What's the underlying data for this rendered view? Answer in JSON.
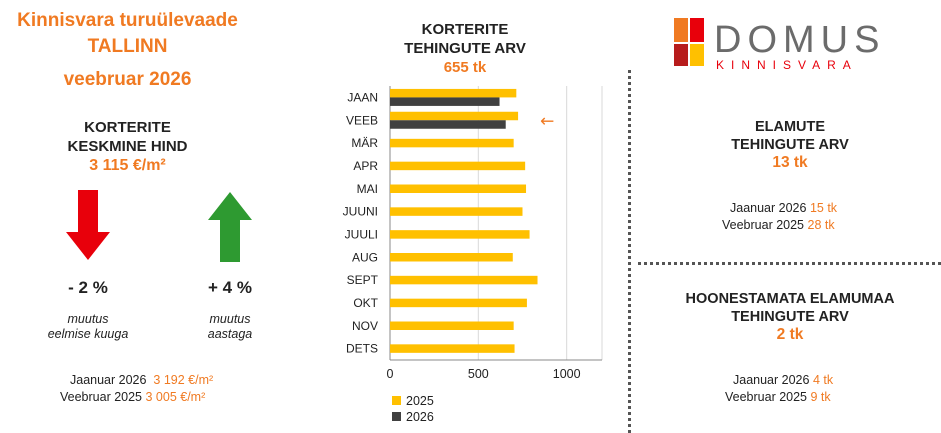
{
  "header": {
    "title_line1": "Kinnisvara turuülevaade",
    "title_line2": "TALLINN",
    "title_line3": "veebruar 2026"
  },
  "price": {
    "label_line1": "KORTERITE",
    "label_line2": "KESKMINE HIND",
    "value": "3 115 €/m²"
  },
  "changes": {
    "monthly": {
      "value": "- 2 %",
      "caption_line1": "muutus",
      "caption_line2": "eelmise kuuga",
      "arrow": "down",
      "color": "#E8000B"
    },
    "yearly": {
      "value": "+ 4 %",
      "caption_line1": "muutus",
      "caption_line2": "aastaga",
      "arrow": "up",
      "color": "#2E9A31"
    }
  },
  "price_refs": [
    {
      "label": "Jaanuar 2026",
      "value": "3 192 €/m²"
    },
    {
      "label": "Veebruar 2025",
      "value": "3 005 €/m²"
    }
  ],
  "chart_title": {
    "line1": "KORTERITE",
    "line2": "TEHINGUTE ARV",
    "value": "655 tk"
  },
  "chart_data": {
    "type": "bar",
    "orientation": "horizontal",
    "categories": [
      "JAAN",
      "VEEB",
      "MÄR",
      "APR",
      "MAI",
      "JUUNI",
      "JUULI",
      "AUG",
      "SEPT",
      "OKT",
      "NOV",
      "DETS"
    ],
    "series": [
      {
        "name": "2025",
        "color": "#FFC000",
        "values": [
          715,
          725,
          700,
          765,
          770,
          750,
          790,
          695,
          835,
          775,
          700,
          705
        ]
      },
      {
        "name": "2026",
        "color": "#404040",
        "values": [
          620,
          655,
          null,
          null,
          null,
          null,
          null,
          null,
          null,
          null,
          null,
          null
        ]
      }
    ],
    "xlim": [
      0,
      1200
    ],
    "xticks": [
      0,
      500,
      1000
    ],
    "grid": "vertical",
    "legend": "bottom-left",
    "highlight": {
      "category": "VEEB",
      "marker": "←"
    }
  },
  "logo": {
    "name": "DOMUS",
    "subtitle": "KINNISVARA"
  },
  "houses": {
    "title_line1": "ELAMUTE",
    "title_line2": "TEHINGUTE ARV",
    "value": "13 tk",
    "refs": [
      {
        "label": "Jaanuar 2026",
        "value": "15 tk"
      },
      {
        "label": "Veebruar 2025",
        "value": "28 tk"
      }
    ]
  },
  "land": {
    "title_line1": "HOONESTAMATA ELAMUMAA",
    "title_line2": "TEHINGUTE ARV",
    "value": "2 tk",
    "refs": [
      {
        "label": "Jaanuar 2026",
        "value": "4 tk"
      },
      {
        "label": "Veebruar 2025",
        "value": "9 tk"
      }
    ]
  },
  "colors": {
    "accent": "#F07A22",
    "bar_2025": "#FFC000",
    "bar_2026": "#404040",
    "down": "#E8000B",
    "up": "#2E9A31"
  }
}
